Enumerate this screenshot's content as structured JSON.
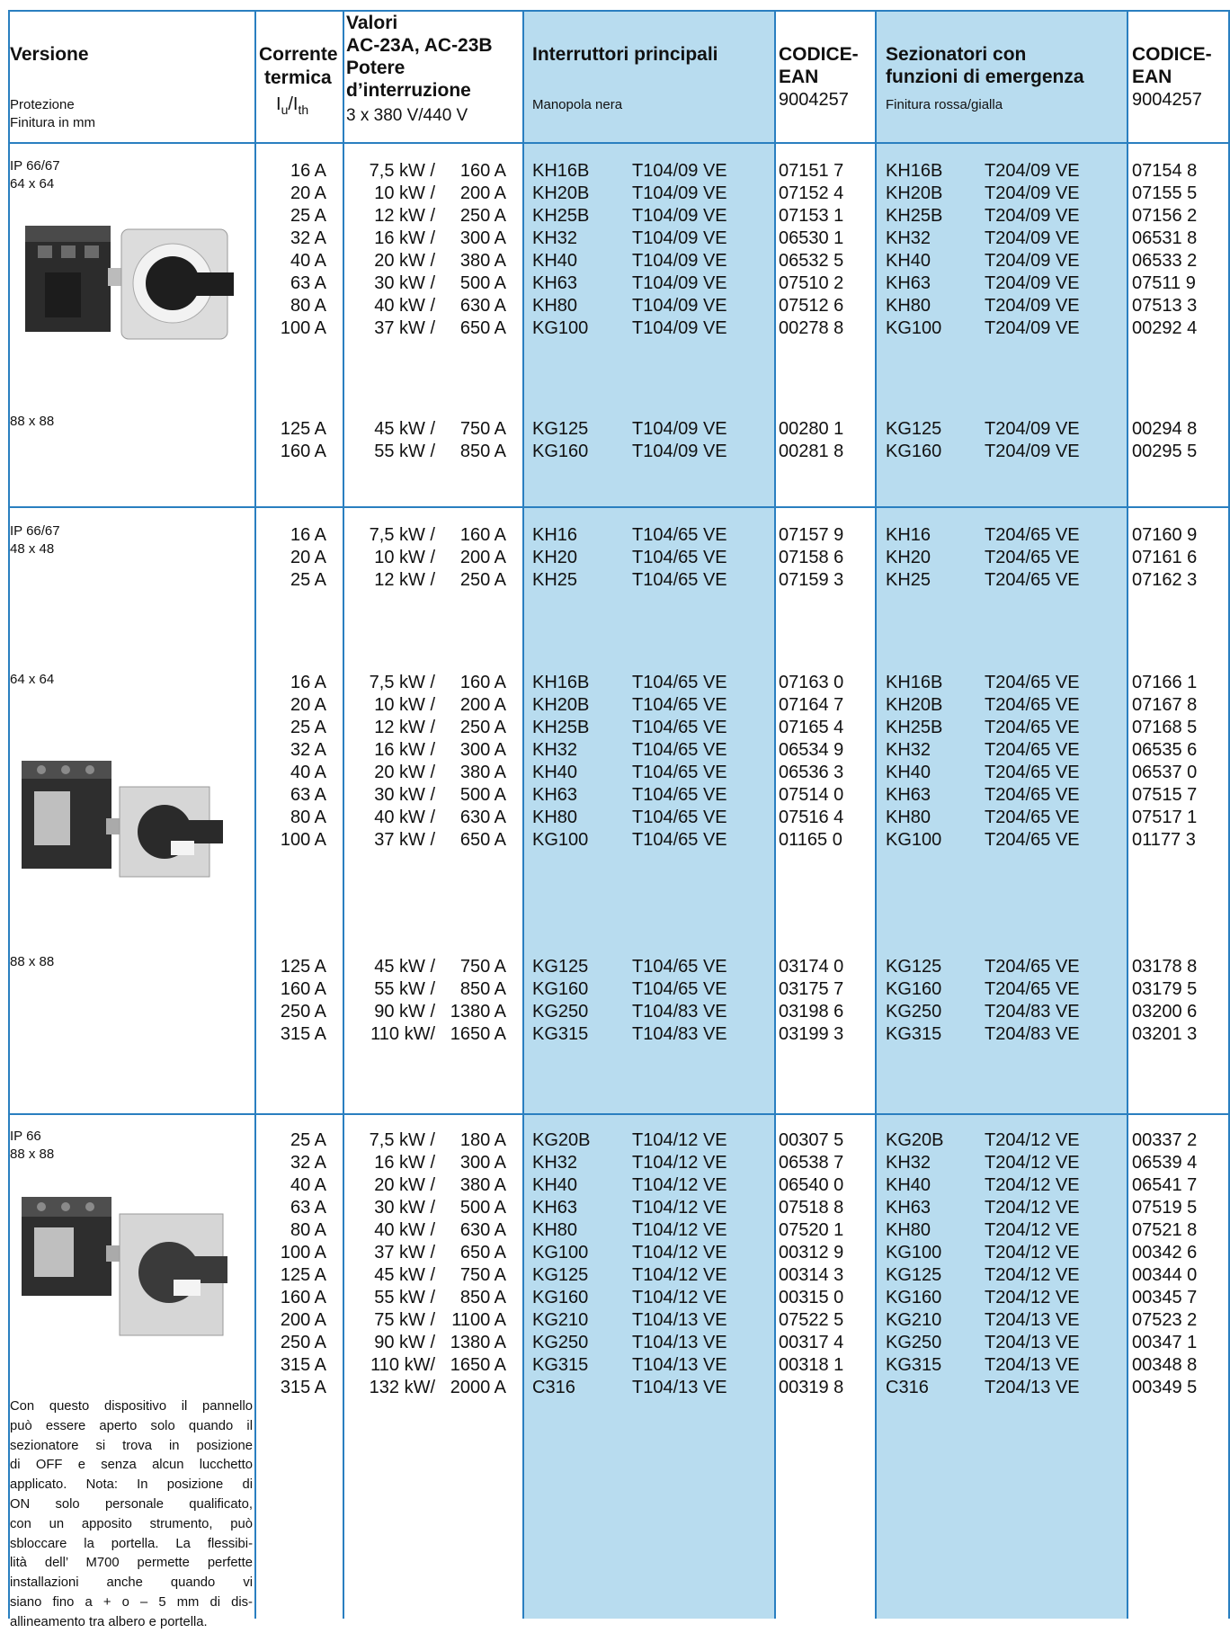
{
  "header": {
    "versione": "Versione",
    "protezione": "Protezione",
    "finitura": "Finitura in mm",
    "corrente": "Corrente",
    "termica": "termica",
    "iu": "I",
    "iu_sub": "u",
    "ith_sep": "/I",
    "ith_sub": "th",
    "valori": "Valori",
    "ac": "AC-23A, AC-23B",
    "potere": "Potere",
    "interruzione": "d’interruzione",
    "voltage": "3 x 380 V/440 V",
    "interruttori": "Interruttori principali",
    "manopola": "Manopola nera",
    "codice1": "CODICE-",
    "ean1": "EAN",
    "ean_num1": "9004257",
    "sezionatori1": "Sezionatori con",
    "sezionatori2": "funzioni di emergenza",
    "finitura_rg": "Finitura rossa/gialla",
    "codice2": "CODICE-",
    "ean2": "EAN",
    "ean_num2": "9004257"
  },
  "labels": {
    "s1a": "IP 66/67",
    "s1b": "64 x 64",
    "s1c": "88 x 88",
    "s2a": "IP 66/67",
    "s2b": "48 x 48",
    "s2c": "64 x 64",
    "s2d": "88 x 88",
    "s3a": "IP 66",
    "s3b": "88 x 88"
  },
  "note_lines": [
    "Con questo dispositivo il pannello",
    "può essere aperto solo quando il",
    "sezionatore si trova in posizione",
    "di OFF e senza alcun lucchetto",
    "applicato. Nota: In posizione di",
    "ON solo personale qualificato,",
    "con un apposito strumento, può",
    "sbloccare la portella. La flessibi-",
    "lità dell’ M700 permette perfette",
    "installazioni anche quando vi",
    "siano fino a + o – 5 mm di dis-",
    "allineamento tra albero e portella."
  ],
  "rows": [
    {
      "amp": "16 A",
      "kw": "7,5 kW /",
      "ka": "160 A",
      "m1": "KH16B",
      "m2": "T104/09 VE",
      "e1": "07151 7",
      "s1": "KH16B",
      "s2": "T204/09 VE",
      "e2": "07154 8"
    },
    {
      "amp": "20 A",
      "kw": "10 kW /",
      "ka": "200 A",
      "m1": "KH20B",
      "m2": "T104/09 VE",
      "e1": "07152 4",
      "s1": "KH20B",
      "s2": "T204/09 VE",
      "e2": "07155 5"
    },
    {
      "amp": "25 A",
      "kw": "12 kW /",
      "ka": "250 A",
      "m1": "KH25B",
      "m2": "T104/09 VE",
      "e1": "07153 1",
      "s1": "KH25B",
      "s2": "T204/09 VE",
      "e2": "07156 2"
    },
    {
      "amp": "32 A",
      "kw": "16 kW /",
      "ka": "300 A",
      "m1": "KH32",
      "m2": "T104/09 VE",
      "e1": "06530 1",
      "s1": "KH32",
      "s2": "T204/09 VE",
      "e2": "06531 8"
    },
    {
      "amp": "40 A",
      "kw": "20 kW /",
      "ka": "380 A",
      "m1": "KH40",
      "m2": "T104/09 VE",
      "e1": "06532 5",
      "s1": "KH40",
      "s2": "T204/09 VE",
      "e2": "06533 2"
    },
    {
      "amp": "63 A",
      "kw": "30 kW /",
      "ka": "500 A",
      "m1": "KH63",
      "m2": "T104/09 VE",
      "e1": "07510 2",
      "s1": "KH63",
      "s2": "T204/09 VE",
      "e2": "07511 9"
    },
    {
      "amp": "80 A",
      "kw": "40 kW /",
      "ka": "630 A",
      "m1": "KH80",
      "m2": "T104/09 VE",
      "e1": "07512 6",
      "s1": "KH80",
      "s2": "T204/09 VE",
      "e2": "07513 3"
    },
    {
      "amp": "100 A",
      "kw": "37 kW /",
      "ka": "650 A",
      "m1": "KG100",
      "m2": "T104/09 VE",
      "e1": "00278 8",
      "s1": "KG100",
      "s2": "T204/09 VE",
      "e2": "00292 4"
    },
    {
      "amp": "125 A",
      "kw": "45 kW /",
      "ka": "750 A",
      "m1": "KG125",
      "m2": "T104/09 VE",
      "e1": "00280 1",
      "s1": "KG125",
      "s2": "T204/09 VE",
      "e2": "00294 8"
    },
    {
      "amp": "160 A",
      "kw": "55 kW /",
      "ka": "850 A",
      "m1": "KG160",
      "m2": "T104/09 VE",
      "e1": "00281 8",
      "s1": "KG160",
      "s2": "T204/09 VE",
      "e2": "00295 5"
    },
    {
      "amp": "16 A",
      "kw": "7,5 kW /",
      "ka": "160 A",
      "m1": "KH16",
      "m2": "T104/65 VE",
      "e1": "07157 9",
      "s1": "KH16",
      "s2": "T204/65 VE",
      "e2": "07160 9"
    },
    {
      "amp": "20 A",
      "kw": "10 kW /",
      "ka": "200 A",
      "m1": "KH20",
      "m2": "T104/65 VE",
      "e1": "07158 6",
      "s1": "KH20",
      "s2": "T204/65 VE",
      "e2": "07161 6"
    },
    {
      "amp": "25 A",
      "kw": "12 kW /",
      "ka": "250 A",
      "m1": "KH25",
      "m2": "T104/65 VE",
      "e1": "07159 3",
      "s1": "KH25",
      "s2": "T204/65 VE",
      "e2": "07162 3"
    },
    {
      "amp": "16 A",
      "kw": "7,5 kW /",
      "ka": "160 A",
      "m1": "KH16B",
      "m2": "T104/65 VE",
      "e1": "07163 0",
      "s1": "KH16B",
      "s2": "T204/65 VE",
      "e2": "07166 1"
    },
    {
      "amp": "20 A",
      "kw": "10 kW /",
      "ka": "200 A",
      "m1": "KH20B",
      "m2": "T104/65 VE",
      "e1": "07164 7",
      "s1": "KH20B",
      "s2": "T204/65 VE",
      "e2": "07167 8"
    },
    {
      "amp": "25 A",
      "kw": "12 kW /",
      "ka": "250 A",
      "m1": "KH25B",
      "m2": "T104/65 VE",
      "e1": "07165 4",
      "s1": "KH25B",
      "s2": "T204/65 VE",
      "e2": "07168 5"
    },
    {
      "amp": "32 A",
      "kw": "16 kW /",
      "ka": "300 A",
      "m1": "KH32",
      "m2": "T104/65 VE",
      "e1": "06534 9",
      "s1": "KH32",
      "s2": "T204/65 VE",
      "e2": "06535 6"
    },
    {
      "amp": "40 A",
      "kw": "20 kW /",
      "ka": "380 A",
      "m1": "KH40",
      "m2": "T104/65 VE",
      "e1": "06536 3",
      "s1": "KH40",
      "s2": "T204/65 VE",
      "e2": "06537 0"
    },
    {
      "amp": "63 A",
      "kw": "30 kW /",
      "ka": "500 A",
      "m1": "KH63",
      "m2": "T104/65 VE",
      "e1": "07514 0",
      "s1": "KH63",
      "s2": "T204/65 VE",
      "e2": "07515 7"
    },
    {
      "amp": "80 A",
      "kw": "40 kW /",
      "ka": "630 A",
      "m1": "KH80",
      "m2": "T104/65 VE",
      "e1": "07516 4",
      "s1": "KH80",
      "s2": "T204/65 VE",
      "e2": "07517 1"
    },
    {
      "amp": "100 A",
      "kw": "37 kW /",
      "ka": "650 A",
      "m1": "KG100",
      "m2": "T104/65 VE",
      "e1": "01165 0",
      "s1": "KG100",
      "s2": "T204/65 VE",
      "e2": "01177 3"
    },
    {
      "amp": "125 A",
      "kw": "45 kW /",
      "ka": "750 A",
      "m1": "KG125",
      "m2": "T104/65 VE",
      "e1": "03174 0",
      "s1": "KG125",
      "s2": "T204/65 VE",
      "e2": "03178 8"
    },
    {
      "amp": "160 A",
      "kw": "55 kW /",
      "ka": "850 A",
      "m1": "KG160",
      "m2": "T104/65 VE",
      "e1": "03175 7",
      "s1": "KG160",
      "s2": "T204/65 VE",
      "e2": "03179 5"
    },
    {
      "amp": "250 A",
      "kw": "90 kW /",
      "ka": "1380 A",
      "m1": "KG250",
      "m2": "T104/83 VE",
      "e1": "03198 6",
      "s1": "KG250",
      "s2": "T204/83 VE",
      "e2": "03200 6"
    },
    {
      "amp": "315 A",
      "kw": "110 kW/",
      "ka": "1650 A",
      "m1": "KG315",
      "m2": "T104/83 VE",
      "e1": "03199 3",
      "s1": "KG315",
      "s2": "T204/83 VE",
      "e2": "03201 3"
    },
    {
      "amp": "25 A",
      "kw": "7,5 kW /",
      "ka": "180 A",
      "m1": "KG20B",
      "m2": "T104/12 VE",
      "e1": "00307 5",
      "s1": "KG20B",
      "s2": "T204/12 VE",
      "e2": "00337 2"
    },
    {
      "amp": "32 A",
      "kw": "16 kW /",
      "ka": "300 A",
      "m1": "KH32",
      "m2": "T104/12 VE",
      "e1": "06538 7",
      "s1": "KH32",
      "s2": "T204/12 VE",
      "e2": "06539 4"
    },
    {
      "amp": "40 A",
      "kw": "20 kW /",
      "ka": "380 A",
      "m1": "KH40",
      "m2": "T104/12 VE",
      "e1": "06540 0",
      "s1": "KH40",
      "s2": "T204/12 VE",
      "e2": "06541 7"
    },
    {
      "amp": "63 A",
      "kw": "30 kW /",
      "ka": "500 A",
      "m1": "KH63",
      "m2": "T104/12 VE",
      "e1": "07518 8",
      "s1": "KH63",
      "s2": "T204/12 VE",
      "e2": "07519 5"
    },
    {
      "amp": "80 A",
      "kw": "40 kW /",
      "ka": "630 A",
      "m1": "KH80",
      "m2": "T104/12 VE",
      "e1": "07520 1",
      "s1": "KH80",
      "s2": "T204/12 VE",
      "e2": "07521 8"
    },
    {
      "amp": "100 A",
      "kw": "37 kW /",
      "ka": "650 A",
      "m1": "KG100",
      "m2": "T104/12 VE",
      "e1": "00312 9",
      "s1": "KG100",
      "s2": "T204/12 VE",
      "e2": "00342 6"
    },
    {
      "amp": "125 A",
      "kw": "45 kW /",
      "ka": "750 A",
      "m1": "KG125",
      "m2": "T104/12 VE",
      "e1": "00314 3",
      "s1": "KG125",
      "s2": "T204/12 VE",
      "e2": "00344 0"
    },
    {
      "amp": "160 A",
      "kw": "55 kW /",
      "ka": "850 A",
      "m1": "KG160",
      "m2": "T104/12 VE",
      "e1": "00315 0",
      "s1": "KG160",
      "s2": "T204/12 VE",
      "e2": "00345 7"
    },
    {
      "amp": "200 A",
      "kw": "75 kW /",
      "ka": "1100 A",
      "m1": "KG210",
      "m2": "T104/13 VE",
      "e1": "07522 5",
      "s1": "KG210",
      "s2": "T204/13 VE",
      "e2": "07523 2"
    },
    {
      "amp": "250 A",
      "kw": "90 kW /",
      "ka": "1380 A",
      "m1": "KG250",
      "m2": "T104/13 VE",
      "e1": "00317 4",
      "s1": "KG250",
      "s2": "T204/13 VE",
      "e2": "00347 1"
    },
    {
      "amp": "315 A",
      "kw": "110 kW/",
      "ka": "1650 A",
      "m1": "KG315",
      "m2": "T104/13 VE",
      "e1": "00318 1",
      "s1": "KG315",
      "s2": "T204/13 VE",
      "e2": "00348 8"
    },
    {
      "amp": "315 A",
      "kw": "132 kW/",
      "ka": "2000 A",
      "m1": "C316",
      "m2": "T104/13 VE",
      "e1": "00319 8",
      "s1": "C316",
      "s2": "T204/13 VE",
      "e2": "00349 5"
    }
  ]
}
